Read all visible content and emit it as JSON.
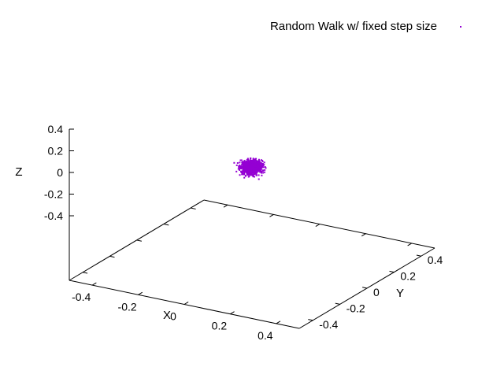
{
  "chart_data": {
    "type": "scatter",
    "title": "",
    "legend_position": "top-right",
    "grid": false,
    "xlabel": "X",
    "ylabel": "Y",
    "zlabel": "Z",
    "xlim": [
      -0.5,
      0.5
    ],
    "ylim": [
      -0.5,
      0.5
    ],
    "zlim": [
      -0.5,
      0.5
    ],
    "x_ticks": [
      "-0.4",
      "-0.2",
      "0",
      "0.2",
      "0.4"
    ],
    "y_ticks": [
      "-0.4",
      "-0.2",
      "0",
      "0.2",
      "0.4"
    ],
    "z_ticks": [
      "0.4",
      "0.2",
      "0",
      "-0.2",
      "-0.4"
    ],
    "series": [
      {
        "name": "Random Walk w/ fixed step size",
        "color": "#9400d3",
        "marker": "point",
        "cluster_center": [
          0.0,
          0.0,
          0.14
        ],
        "cluster_radius": [
          0.04,
          0.04,
          0.08
        ]
      }
    ]
  }
}
